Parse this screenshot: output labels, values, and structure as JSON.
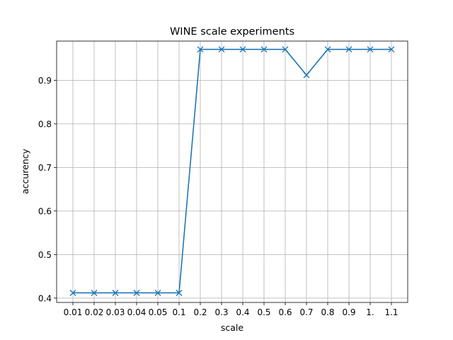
{
  "chart_data": {
    "type": "line",
    "title": "WINE scale experiments",
    "xlabel": "scale",
    "ylabel": "accurency",
    "categories": [
      "0.01",
      "0.02",
      "0.03",
      "0.04",
      "0.05",
      "0.1",
      "0.2",
      "0.3",
      "0.4",
      "0.5",
      "0.6",
      "0.7",
      "0.8",
      "0.9",
      "1.",
      "1.1"
    ],
    "series": [
      {
        "marker": "x",
        "color": "#1f77b4",
        "values": [
          0.412,
          0.412,
          0.412,
          0.412,
          0.412,
          0.412,
          0.971,
          0.971,
          0.971,
          0.971,
          0.971,
          0.912,
          0.971,
          0.971,
          0.971,
          0.971
        ]
      }
    ],
    "yticks": [
      0.4,
      0.5,
      0.6,
      0.7,
      0.8,
      0.9
    ],
    "ylim": [
      0.39,
      0.99
    ],
    "grid": true
  }
}
